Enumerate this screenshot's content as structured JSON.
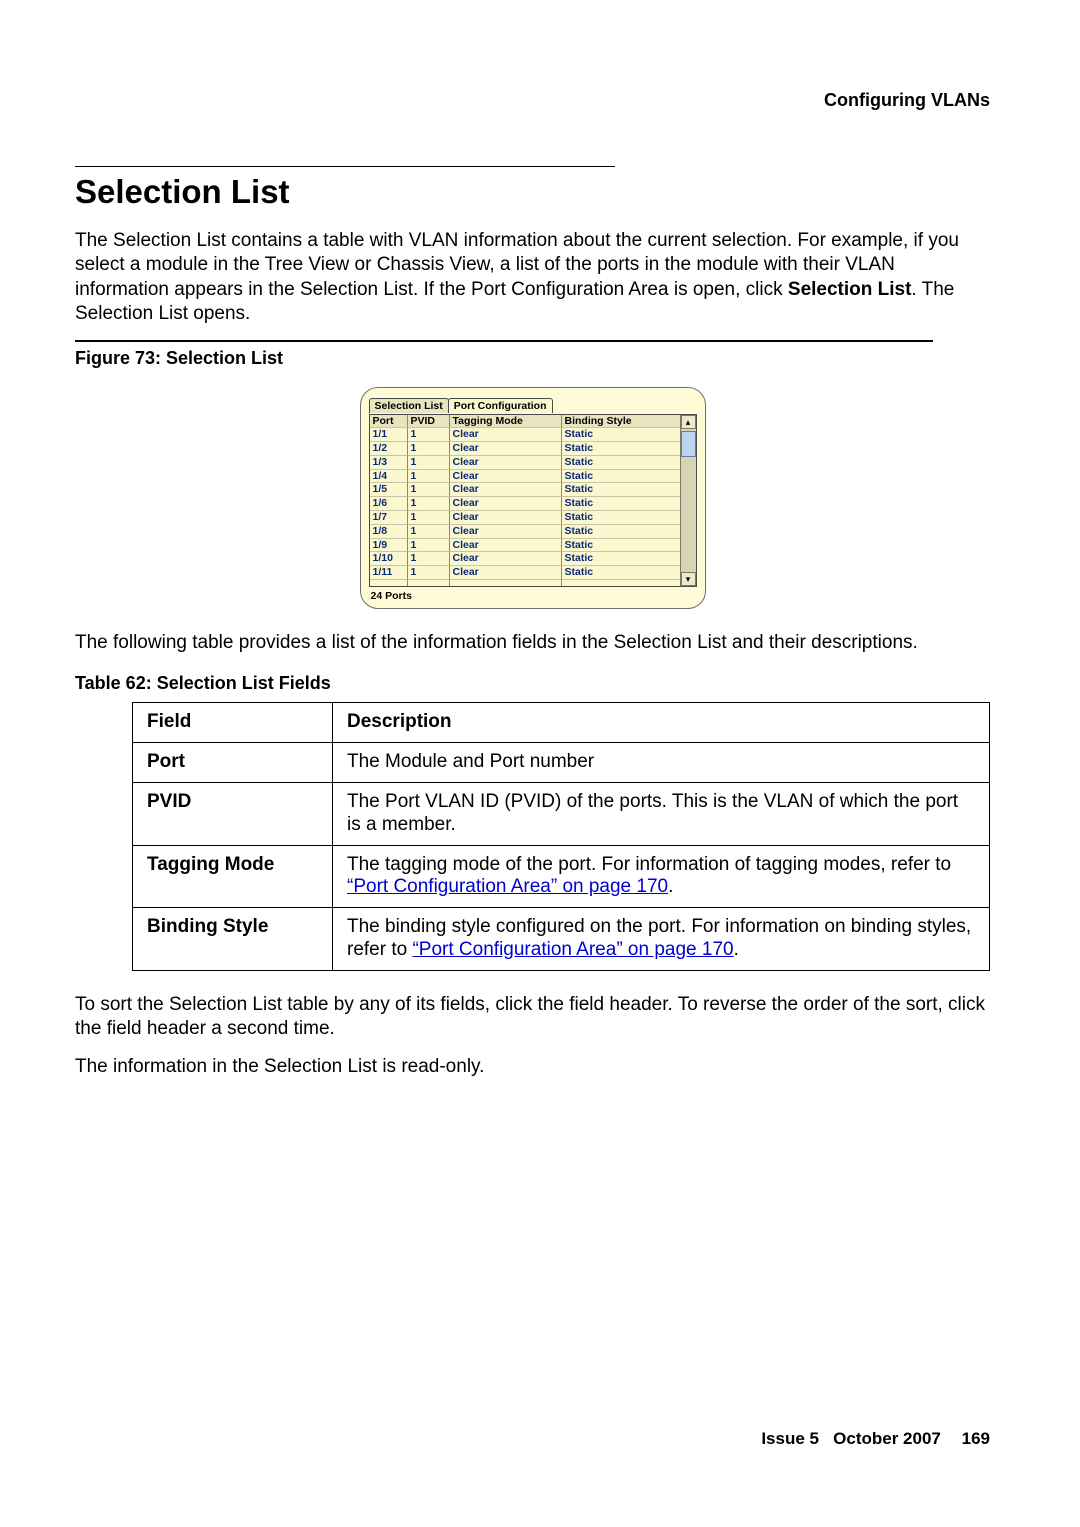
{
  "header": {
    "section": "Configuring VLANs"
  },
  "title": "Selection List",
  "intro": {
    "p1_pre": "The Selection List contains a table with VLAN information about the current selection. For example, if you select a module in the Tree View or Chassis View, a list of the ports in the module with their VLAN information appears in the Selection List. If the Port Configuration Area is open, click ",
    "p1_bold": "Selection List",
    "p1_post": ". The Selection List opens."
  },
  "figure": {
    "caption": "Figure 73: Selection List",
    "tabs": {
      "active": "Selection List",
      "inactive": "Port Configuration"
    },
    "headers": {
      "port": "Port",
      "pvid": "PVID",
      "tag": "Tagging Mode",
      "bind": "Binding Style"
    },
    "rows": [
      {
        "port": "1/1",
        "pvid": "1",
        "tag": "Clear",
        "bind": "Static"
      },
      {
        "port": "1/2",
        "pvid": "1",
        "tag": "Clear",
        "bind": "Static"
      },
      {
        "port": "1/3",
        "pvid": "1",
        "tag": "Clear",
        "bind": "Static"
      },
      {
        "port": "1/4",
        "pvid": "1",
        "tag": "Clear",
        "bind": "Static"
      },
      {
        "port": "1/5",
        "pvid": "1",
        "tag": "Clear",
        "bind": "Static"
      },
      {
        "port": "1/6",
        "pvid": "1",
        "tag": "Clear",
        "bind": "Static"
      },
      {
        "port": "1/7",
        "pvid": "1",
        "tag": "Clear",
        "bind": "Static"
      },
      {
        "port": "1/8",
        "pvid": "1",
        "tag": "Clear",
        "bind": "Static"
      },
      {
        "port": "1/9",
        "pvid": "1",
        "tag": "Clear",
        "bind": "Static"
      },
      {
        "port": "1/10",
        "pvid": "1",
        "tag": "Clear",
        "bind": "Static"
      },
      {
        "port": "1/11",
        "pvid": "1",
        "tag": "Clear",
        "bind": "Static"
      }
    ],
    "status": "24 Ports"
  },
  "betweenText": "The following table provides a list of the information fields in the Selection List and their descriptions.",
  "table": {
    "caption": "Table 62: Selection List Fields",
    "head": {
      "field": "Field",
      "desc": "Description"
    },
    "rows": [
      {
        "field": "Port",
        "desc": "The Module and Port number"
      },
      {
        "field": "PVID",
        "desc": "The Port VLAN ID (PVID) of the ports. This is the VLAN of which the port is a member."
      },
      {
        "field": "Tagging Mode",
        "desc_pre": "The tagging mode of the port. For information of tagging modes, refer to ",
        "link": "“Port Configuration Area” on page 170",
        "desc_post": "."
      },
      {
        "field": "Binding Style",
        "desc_pre": "The binding style configured on the port. For information on binding styles, refer to ",
        "link": "“Port Configuration Area” on page 170",
        "desc_post": "."
      }
    ]
  },
  "afterTable": {
    "p1": "To sort the Selection List table by any of its fields, click the field header. To reverse the order of the sort, click the field header a second time.",
    "p2": "The information in the Selection List is read-only."
  },
  "footer": {
    "issue": "Issue 5",
    "date": "October 2007",
    "page": "169"
  },
  "scroll": {
    "up": "▴",
    "down": "▾"
  },
  "colors": {
    "panel_bg": "#fffbd6",
    "table_bg": "#fbf7ce",
    "hdr_bg": "#e8e4c0",
    "row_text": "#0a2a7a",
    "link": "#0000d0",
    "thumb": "#bcd5ee"
  }
}
